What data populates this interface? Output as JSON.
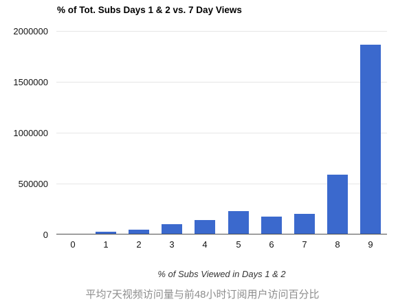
{
  "page": {
    "caption": "平均7天视频访问量与前48小时订阅用户访问百分比",
    "caption_color": "#8d8d8d",
    "background_color": "#ffffff"
  },
  "chart_data": {
    "type": "bar",
    "title": "% of Tot. Subs Days 1 & 2 vs. 7 Day Views",
    "xlabel": "% of Subs Viewed in Days 1 & 2",
    "ylabel": "",
    "categories": [
      "0",
      "1",
      "2",
      "3",
      "4",
      "5",
      "6",
      "7",
      "8",
      "9"
    ],
    "values": [
      5000,
      25000,
      50000,
      100000,
      145000,
      230000,
      175000,
      200000,
      590000,
      1865000
    ],
    "ylim": [
      0,
      2000000
    ],
    "yticks": [
      0,
      500000,
      1000000,
      1500000,
      2000000
    ],
    "ytick_labels": [
      "0",
      "500000",
      "1000000",
      "1500000",
      "2000000"
    ],
    "grid": true,
    "legend": "none",
    "bar_color": "#3b69cd",
    "grid_color": "#e6e6e6",
    "baseline_color": "#4d4d4d",
    "axis_text_color": "#111111"
  }
}
